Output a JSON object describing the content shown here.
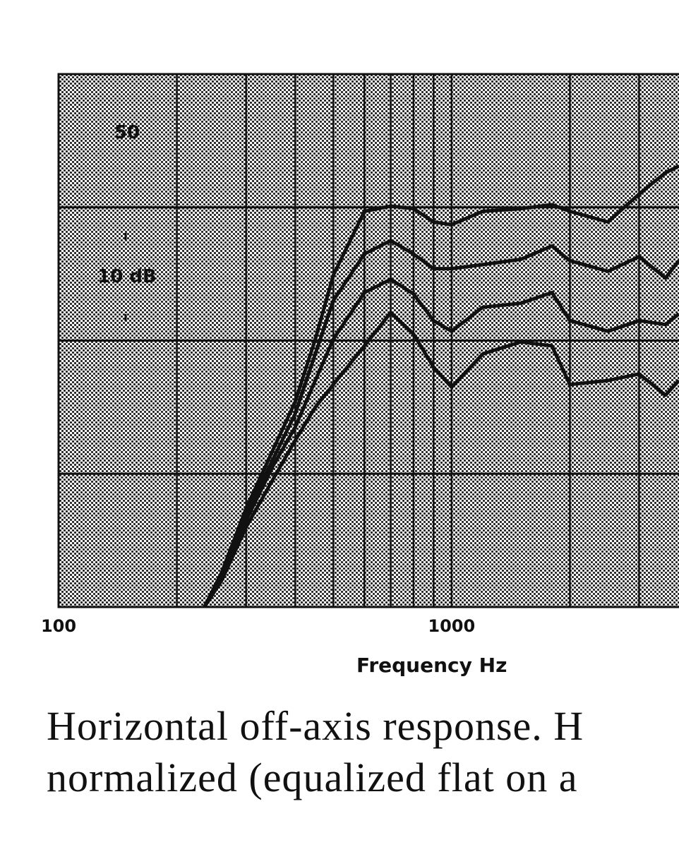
{
  "chart_data": {
    "type": "line",
    "x_scale": "log",
    "x": [
      235,
      260,
      300,
      350,
      400,
      450,
      500,
      600,
      700,
      800,
      900,
      1000,
      1200,
      1500,
      1800,
      2000,
      2500,
      3000,
      3500,
      3790
    ],
    "series": [
      {
        "color": "#111111",
        "values": [
          -40,
          -37.4,
          -32.6,
          -28.3,
          -24.6,
          -19.9,
          -15.1,
          -10.3,
          -9.9,
          -10.1,
          -11.1,
          -11.3,
          -10.3,
          -10.1,
          -9.8,
          -10.3,
          -11.1,
          -9.0,
          -7.4,
          -6.9
        ]
      },
      {
        "color": "#111111",
        "values": [
          -40,
          -37.6,
          -33,
          -29,
          -25.5,
          -21,
          -17,
          -13.5,
          -12.5,
          -13.5,
          -14.6,
          -14.6,
          -14.3,
          -13.9,
          -12.9,
          -14.0,
          -14.8,
          -13.7,
          -15.3,
          -14.0
        ]
      },
      {
        "color": "#111111",
        "values": [
          -40,
          -37.8,
          -33.5,
          -29.5,
          -26.5,
          -23,
          -19.9,
          -16.4,
          -15.4,
          -16.5,
          -18.5,
          -19.3,
          -17.5,
          -17.2,
          -16.4,
          -18.5,
          -19.3,
          -18.5,
          -18.8,
          -18.0
        ]
      },
      {
        "color": "#111111",
        "values": [
          -40,
          -38,
          -34,
          -30.5,
          -27.5,
          -25,
          -23.3,
          -20.4,
          -17.9,
          -19.5,
          -22,
          -23.5,
          -21,
          -20.1,
          -20.4,
          -23.3,
          -23,
          -22.5,
          -24.1,
          -23.0
        ]
      }
    ],
    "xlim": [
      100,
      3790
    ],
    "xticks": [
      100,
      1000
    ],
    "xgrid": [
      200,
      300,
      400,
      500,
      600,
      700,
      800,
      900,
      2000,
      3000
    ],
    "ylim": [
      -40,
      0
    ],
    "yticks": [
      -40,
      -30,
      -20,
      -10,
      0
    ],
    "grid": true,
    "xlabel": "Frequency Hz",
    "annotations": [
      "50",
      "10 dB"
    ]
  },
  "caption": [
    "Horizontal off-axis response. H",
    "normalized (equalized flat on a"
  ]
}
